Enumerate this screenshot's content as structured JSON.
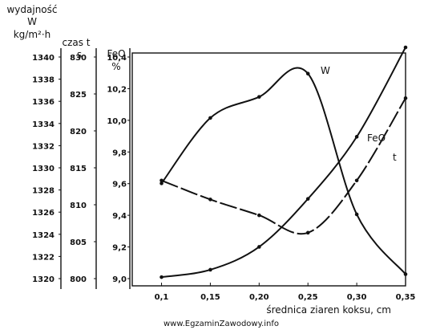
{
  "chart_data": {
    "type": "line",
    "x_axis": {
      "label": "średnica ziaren koksu, cm",
      "range": [
        0.07,
        0.35
      ],
      "ticks": [
        0.1,
        0.15,
        0.2,
        0.25,
        0.3,
        0.35
      ],
      "tick_labels": [
        "0,1",
        "0,15",
        "0,20",
        "0,25",
        "0,30",
        "0,35"
      ]
    },
    "y_axes": [
      {
        "id": "W",
        "title_lines": [
          "wydajność",
          "W",
          "kg/m²·h"
        ],
        "range": [
          1320,
          1340
        ],
        "ticks": [
          1320,
          1322,
          1324,
          1326,
          1328,
          1330,
          1332,
          1334,
          1336,
          1338,
          1340
        ],
        "tick_labels": [
          "1320",
          "1322",
          "1324",
          "1326",
          "1328",
          "1330",
          "1332",
          "1334",
          "1336",
          "1338",
          "1340"
        ]
      },
      {
        "id": "t",
        "title_lines": [
          "czas t",
          "s"
        ],
        "range": [
          800,
          830
        ],
        "ticks": [
          800,
          805,
          810,
          815,
          820,
          825,
          830
        ],
        "tick_labels": [
          "800",
          "805",
          "810",
          "815",
          "820",
          "825",
          "830"
        ]
      },
      {
        "id": "FeO",
        "title_lines": [
          "FeO",
          "%"
        ],
        "range": [
          9.0,
          10.4
        ],
        "ticks": [
          9.0,
          9.2,
          9.4,
          9.6,
          9.8,
          10.0,
          10.2,
          10.4
        ],
        "tick_labels": [
          "9,0",
          "9,2",
          "9,4",
          "9,6",
          "9,8",
          "10,0",
          "10,2",
          "10,4"
        ]
      }
    ],
    "series": [
      {
        "name": "W",
        "axis": "W",
        "x": [
          0.1,
          0.15,
          0.2,
          0.25,
          0.3,
          0.35
        ],
        "y": [
          1328.6,
          1334.5,
          1336.4,
          1338.5,
          1325.8,
          1320.4
        ]
      },
      {
        "name": "FeO",
        "axis": "FeO",
        "x": [
          0.1,
          0.15,
          0.2,
          0.25,
          0.3,
          0.35
        ],
        "y": [
          9.62,
          9.5,
          9.4,
          9.29,
          9.62,
          10.14
        ]
      },
      {
        "name": "t",
        "axis": "t",
        "x": [
          0.1,
          0.15,
          0.2,
          0.25,
          0.3,
          0.35
        ],
        "y": [
          800.2,
          801.2,
          804.3,
          810.8,
          819.2,
          831.3
        ]
      }
    ],
    "grid": false,
    "legend": "none"
  },
  "watermark": "www.EgzaminZawodowy.info"
}
